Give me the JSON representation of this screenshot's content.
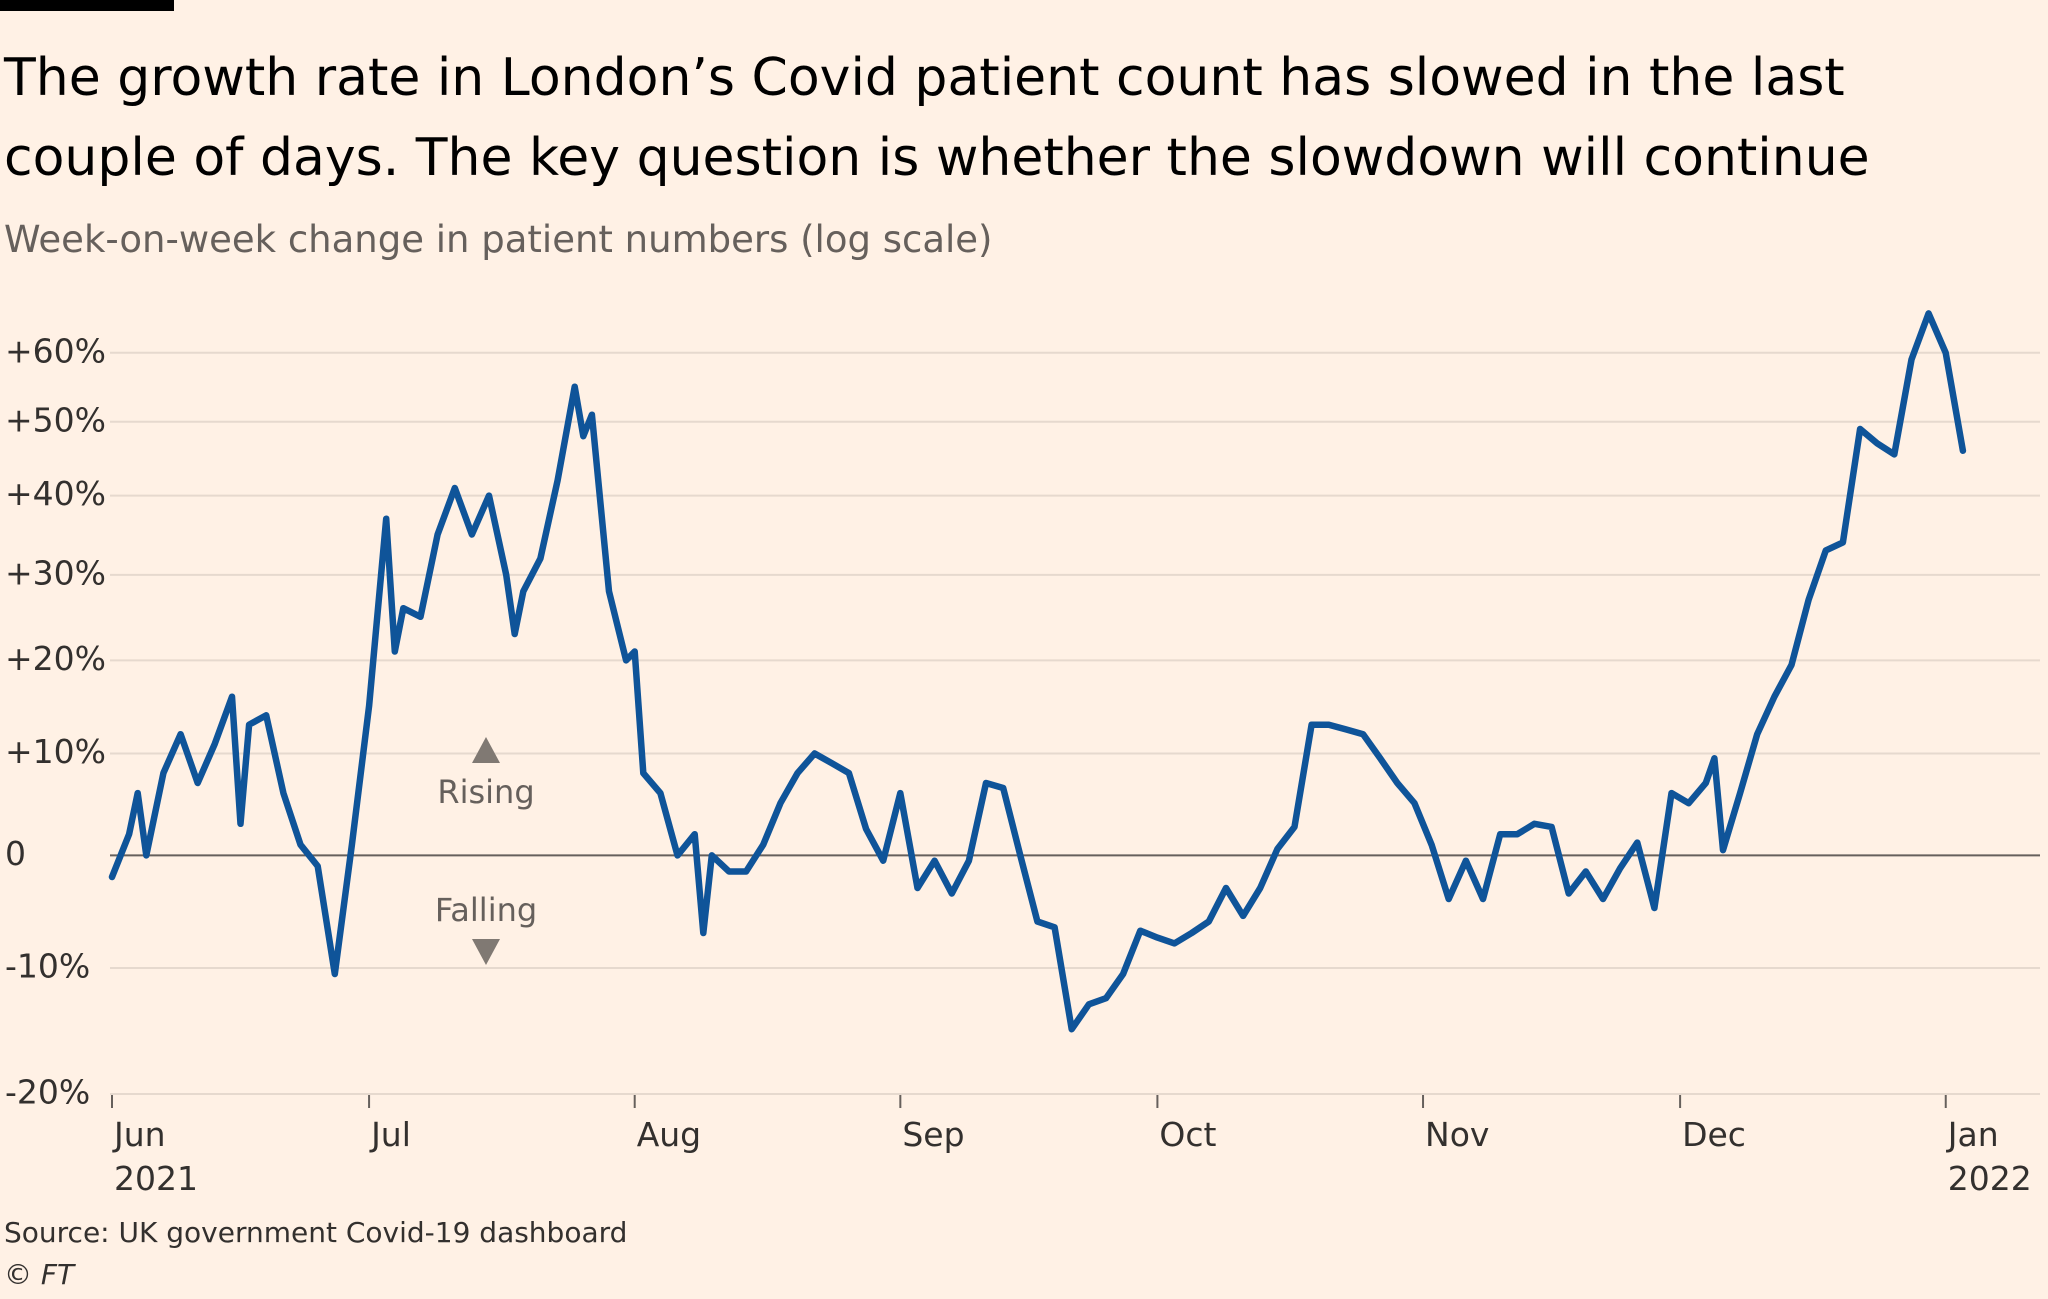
{
  "chart_data": {
    "type": "line",
    "title": "The growth rate in London’s Covid patient count has slowed in the last\ncouple of days. The key question is whether the slowdown will continue",
    "subtitle": "Week-on-week change in patient numbers (log scale)",
    "annotations": [
      "Rising",
      "Falling"
    ],
    "source": "Source: UK government Covid-19 dashboard",
    "credit": "© FT",
    "log_scale": true,
    "grid": true,
    "color": "#0f5499",
    "ylim": [
      -20,
      67
    ],
    "yticks": [
      {
        "value": -20,
        "label": "-20%"
      },
      {
        "value": -10,
        "label": "-10%"
      },
      0,
      {
        "value": 10,
        "label": "+10%"
      },
      {
        "value": 20,
        "label": "+20%"
      },
      {
        "value": 30,
        "label": "+30%"
      },
      {
        "value": 40,
        "label": "+40%"
      },
      {
        "value": 50,
        "label": "+50%"
      },
      {
        "value": 60,
        "label": "+60%"
      }
    ],
    "xlim": [
      "2021-06-01",
      "2022-01-12"
    ],
    "xticks": [
      {
        "value": "2021-06-01",
        "label": "Jun\n2021"
      },
      {
        "value": "2021-07-01",
        "label": "Jul"
      },
      {
        "value": "2021-08-01",
        "label": "Aug"
      },
      {
        "value": "2021-09-01",
        "label": "Sep"
      },
      {
        "value": "2021-10-01",
        "label": "Oct"
      },
      {
        "value": "2021-11-01",
        "label": "Nov"
      },
      {
        "value": "2021-12-01",
        "label": "Dec"
      },
      {
        "value": "2022-01-01",
        "label": "Jan\n2022"
      }
    ],
    "x": [
      "2021-06-01",
      "2021-06-03",
      "2021-06-04",
      "2021-06-05",
      "2021-06-07",
      "2021-06-09",
      "2021-06-11",
      "2021-06-13",
      "2021-06-15",
      "2021-06-16",
      "2021-06-17",
      "2021-06-19",
      "2021-06-21",
      "2021-06-23",
      "2021-06-25",
      "2021-06-27",
      "2021-06-29",
      "2021-07-01",
      "2021-07-03",
      "2021-07-04",
      "2021-07-05",
      "2021-07-07",
      "2021-07-09",
      "2021-07-11",
      "2021-07-13",
      "2021-07-15",
      "2021-07-17",
      "2021-07-18",
      "2021-07-19",
      "2021-07-21",
      "2021-07-23",
      "2021-07-25",
      "2021-07-26",
      "2021-07-27",
      "2021-07-29",
      "2021-07-31",
      "2021-08-01",
      "2021-08-02",
      "2021-08-04",
      "2021-08-06",
      "2021-08-08",
      "2021-08-09",
      "2021-08-10",
      "2021-08-12",
      "2021-08-14",
      "2021-08-16",
      "2021-08-18",
      "2021-08-20",
      "2021-08-22",
      "2021-08-24",
      "2021-08-26",
      "2021-08-28",
      "2021-08-30",
      "2021-09-01",
      "2021-09-03",
      "2021-09-05",
      "2021-09-07",
      "2021-09-09",
      "2021-09-11",
      "2021-09-13",
      "2021-09-15",
      "2021-09-17",
      "2021-09-19",
      "2021-09-21",
      "2021-09-23",
      "2021-09-25",
      "2021-09-27",
      "2021-09-29",
      "2021-10-01",
      "2021-10-03",
      "2021-10-05",
      "2021-10-07",
      "2021-10-09",
      "2021-10-11",
      "2021-10-13",
      "2021-10-15",
      "2021-10-17",
      "2021-10-19",
      "2021-10-21",
      "2021-10-23",
      "2021-10-25",
      "2021-10-27",
      "2021-10-29",
      "2021-10-31",
      "2021-11-02",
      "2021-11-04",
      "2021-11-06",
      "2021-11-08",
      "2021-11-10",
      "2021-11-12",
      "2021-11-14",
      "2021-11-16",
      "2021-11-18",
      "2021-11-20",
      "2021-11-22",
      "2021-11-24",
      "2021-11-26",
      "2021-11-28",
      "2021-11-30",
      "2021-12-02",
      "2021-12-04",
      "2021-12-05",
      "2021-12-06",
      "2021-12-08",
      "2021-12-10",
      "2021-12-12",
      "2021-12-14",
      "2021-12-16",
      "2021-12-18",
      "2021-12-20",
      "2021-12-22",
      "2021-12-24",
      "2021-12-26",
      "2021-12-28",
      "2021-12-30",
      "2022-01-01",
      "2022-01-03"
    ],
    "values": [
      -2,
      2,
      6,
      0,
      8,
      12,
      7,
      11,
      16,
      3,
      13,
      14,
      6,
      1,
      -1,
      -10.5,
      1,
      15,
      37,
      21,
      26,
      25,
      35,
      41,
      35,
      40,
      30,
      23,
      28,
      32,
      42,
      55,
      48,
      51,
      28,
      20,
      21,
      8,
      6,
      0,
      2,
      -7,
      0,
      -1.5,
      -1.5,
      1,
      5,
      8,
      10,
      9,
      8,
      2.5,
      -0.5,
      6,
      -3,
      -0.5,
      -3.5,
      -0.5,
      7,
      6.5,
      0,
      -6,
      -6.5,
      -15,
      -13,
      -12.5,
      -10.5,
      -6.8,
      -7.4,
      -7.9,
      -7,
      -6,
      -3,
      -5.5,
      -3,
      0.6,
      2.7,
      13,
      13,
      12.5,
      12,
      9.5,
      7,
      5,
      1,
      -4,
      -0.5,
      -4,
      2,
      2,
      3,
      2.7,
      -3.5,
      -1.5,
      -4,
      -1.2,
      1.2,
      -4.8,
      6,
      5,
      7,
      9.5,
      0.5,
      6,
      12,
      16,
      19.5,
      27,
      33,
      34,
      49,
      47,
      45.5,
      59,
      66,
      60,
      46
    ]
  }
}
